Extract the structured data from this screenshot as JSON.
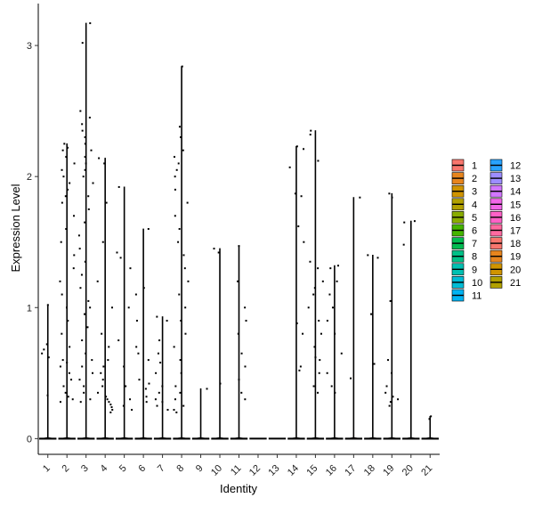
{
  "chart_data": {
    "type": "violin",
    "xlabel": "Identity",
    "ylabel": "Expression Level",
    "categories": [
      "1",
      "2",
      "3",
      "4",
      "5",
      "6",
      "7",
      "8",
      "9",
      "10",
      "11",
      "12",
      "13",
      "14",
      "15",
      "16",
      "17",
      "18",
      "19",
      "20",
      "21"
    ],
    "ylim": [
      -0.12,
      3.32
    ],
    "yticks": [
      0,
      1,
      2,
      3
    ],
    "grid": false,
    "legend_position": "right",
    "legend_columns": [
      [
        "1",
        "2",
        "3",
        "4",
        "5",
        "6",
        "7",
        "8",
        "9",
        "10",
        "11"
      ],
      [
        "12",
        "13",
        "14",
        "15",
        "16",
        "17",
        "18",
        "19",
        "20",
        "21"
      ]
    ],
    "colors": [
      "#F8766D",
      "#E7851E",
      "#D09400",
      "#B2A100",
      "#89AC00",
      "#45B500",
      "#00BC51",
      "#00C087",
      "#00C0B2",
      "#00BCD6",
      "#00B3F2",
      "#29A3FF",
      "#9C8DFF",
      "#D277FF",
      "#F166E8",
      "#FF61C7",
      "#FF6AA0",
      "#F8766D",
      "#E7851E",
      "#D09400",
      "#B2A100"
    ],
    "series_max": [
      1.02,
      2.25,
      3.17,
      2.14,
      1.92,
      1.6,
      0.93,
      2.84,
      0.38,
      1.45,
      1.47,
      0,
      0,
      2.23,
      2.35,
      1.32,
      1.84,
      1.4,
      1.87,
      1.66,
      0.17
    ],
    "nonzero_points": [
      [
        0.33,
        0.62,
        0.65,
        0.68,
        0.72,
        1.02
      ],
      [
        0.28,
        0.3,
        0.32,
        0.35,
        0.4,
        0.45,
        0.5,
        0.55,
        0.58,
        0.6,
        0.7,
        0.8,
        0.9,
        1.0,
        1.1,
        1.2,
        1.3,
        1.4,
        1.5,
        1.6,
        1.7,
        1.8,
        1.85,
        1.9,
        1.95,
        2.0,
        2.05,
        2.1,
        2.15,
        2.2,
        2.22,
        2.25
      ],
      [
        0.28,
        0.3,
        0.35,
        0.4,
        0.45,
        0.5,
        0.55,
        0.6,
        0.65,
        0.75,
        0.85,
        0.95,
        1.0,
        1.05,
        1.15,
        1.25,
        1.35,
        1.45,
        1.55,
        1.65,
        1.75,
        1.85,
        1.95,
        2.0,
        2.05,
        2.1,
        2.15,
        2.2,
        2.25,
        2.3,
        2.35,
        2.4,
        2.45,
        2.5,
        3.02,
        3.17
      ],
      [
        0.2,
        0.22,
        0.24,
        0.26,
        0.28,
        0.3,
        0.32,
        0.35,
        0.4,
        0.45,
        0.5,
        0.55,
        0.6,
        0.7,
        0.8,
        1.0,
        1.2,
        1.5,
        1.8,
        2.1,
        2.14
      ],
      [
        0.22,
        0.25,
        0.3,
        0.4,
        0.55,
        0.75,
        1.0,
        1.3,
        1.38,
        1.42,
        1.92
      ],
      [
        0.28,
        0.32,
        0.38,
        0.42,
        0.45,
        0.6,
        0.65,
        0.7,
        0.9,
        1.1,
        1.15,
        1.6
      ],
      [
        0.22,
        0.25,
        0.28,
        0.3,
        0.35,
        0.4,
        0.5,
        0.58,
        0.65,
        0.75,
        0.9,
        0.93
      ],
      [
        0.2,
        0.22,
        0.25,
        0.3,
        0.35,
        0.4,
        0.5,
        0.6,
        0.7,
        0.8,
        0.9,
        1.0,
        1.1,
        1.2,
        1.3,
        1.4,
        1.5,
        1.6,
        1.7,
        1.8,
        1.9,
        2.0,
        2.05,
        2.1,
        2.15,
        2.2,
        2.3,
        2.38,
        2.84
      ],
      [
        0.38
      ],
      [
        0.42,
        1.42,
        1.45
      ],
      [
        0.3,
        0.35,
        0.45,
        0.55,
        0.65,
        0.8,
        0.9,
        1.0,
        1.2,
        1.47
      ],
      [],
      [],
      [
        0.52,
        0.55,
        0.8,
        0.88,
        1.5,
        1.62,
        1.85,
        1.87,
        2.07,
        2.21,
        2.23
      ],
      [
        0.35,
        0.4,
        0.5,
        0.6,
        0.62,
        0.7,
        0.8,
        0.9,
        1.0,
        1.1,
        1.15,
        1.2,
        1.3,
        1.35,
        2.12,
        2.32,
        2.35
      ],
      [
        0.35,
        0.4,
        0.5,
        0.65,
        0.8,
        0.9,
        1.0,
        1.1,
        1.2,
        1.3,
        1.32
      ],
      [
        0.46,
        1.84
      ],
      [
        0.57,
        0.95,
        1.38,
        1.4
      ],
      [
        0.25,
        0.28,
        0.3,
        0.32,
        0.35,
        0.4,
        0.5,
        0.6,
        1.05,
        1.84,
        1.87
      ],
      [
        1.48,
        1.65,
        1.66
      ],
      [
        0.15,
        0.17
      ]
    ]
  }
}
